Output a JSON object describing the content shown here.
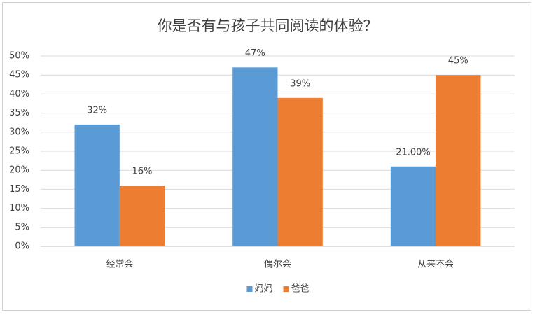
{
  "chart_data": {
    "type": "bar",
    "title": "你是否有与孩子共同阅读的体验？",
    "categories": [
      "经常会",
      "偶尔会",
      "从来不会"
    ],
    "series": [
      {
        "name": "妈妈",
        "color": "#5b9bd5",
        "values": [
          32,
          47,
          21
        ],
        "value_labels": [
          "32%",
          "47%",
          "21.00%"
        ]
      },
      {
        "name": "爸爸",
        "color": "#ed7d31",
        "values": [
          16,
          39,
          45
        ],
        "value_labels": [
          "16%",
          "39%",
          "45%"
        ]
      }
    ],
    "ylim": [
      0,
      50
    ],
    "yticks": [
      {
        "value": 0,
        "label": "0%"
      },
      {
        "value": 5,
        "label": "5%"
      },
      {
        "value": 10,
        "label": "10%"
      },
      {
        "value": 15,
        "label": "15%"
      },
      {
        "value": 20,
        "label": "20%"
      },
      {
        "value": 25,
        "label": "25%"
      },
      {
        "value": 30,
        "label": "30%"
      },
      {
        "value": 35,
        "label": "35%"
      },
      {
        "value": 40,
        "label": "40%"
      },
      {
        "value": 45,
        "label": "45%"
      },
      {
        "value": 50,
        "label": "50%"
      }
    ],
    "grid": true,
    "legend": "bottom"
  }
}
